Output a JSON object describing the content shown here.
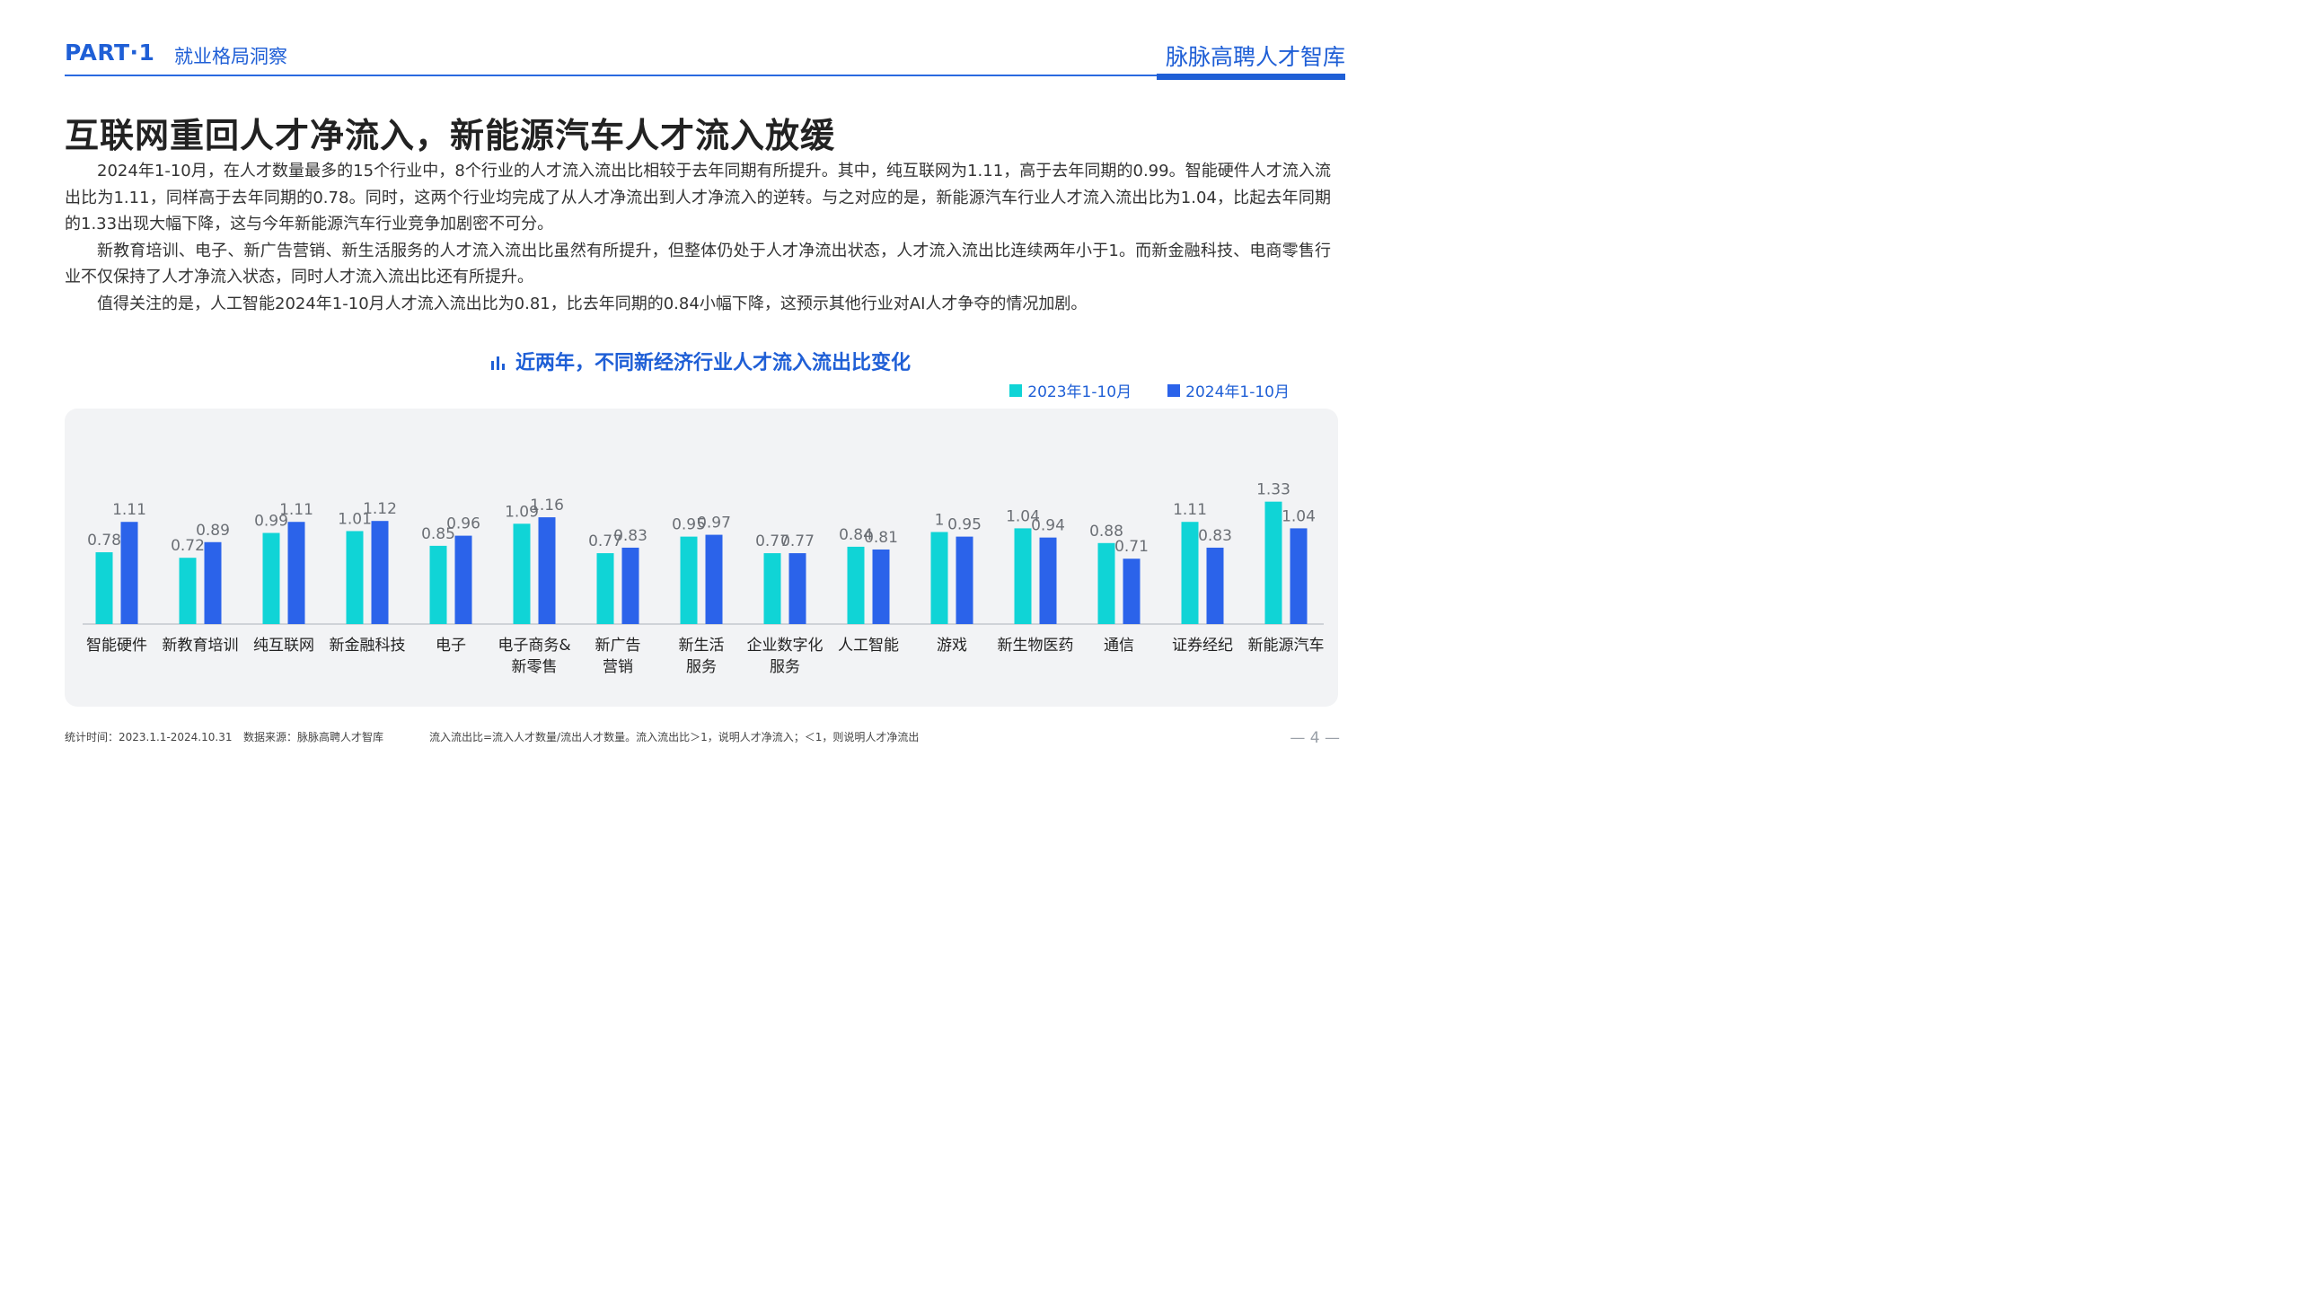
{
  "header": {
    "part": "PART·1",
    "section": "就业格局洞察",
    "brand": "脉脉高聘人才智库"
  },
  "title": "互联网重回人才净流入，新能源汽车人才流入放缓",
  "paragraphs": [
    "2024年1-10月，在人才数量最多的15个行业中，8个行业的人才流入流出比相较于去年同期有所提升。其中，纯互联网为1.11，高于去年同期的0.99。智能硬件人才流入流出比为1.11，同样高于去年同期的0.78。同时，这两个行业均完成了从人才净流出到人才净流入的逆转。与之对应的是，新能源汽车行业人才流入流出比为1.04，比起去年同期的1.33出现大幅下降，这与今年新能源汽车行业竞争加剧密不可分。",
    "新教育培训、电子、新广告营销、新生活服务的人才流入流出比虽然有所提升，但整体仍处于人才净流出状态，人才流入流出比连续两年小于1。而新金融科技、电商零售行业不仅保持了人才净流入状态，同时人才流入流出比还有所提升。",
    "值得关注的是，人工智能2024年1-10月人才流入流出比为0.81，比去年同期的0.84小幅下降，这预示其他行业对AI人才争夺的情况加剧。"
  ],
  "chart_title_icon": "bar-chart-icon",
  "colors": {
    "accent": "#1f5fd6",
    "series_2023": "#10d4d6",
    "series_2024": "#2b63ea"
  },
  "chart_data": {
    "type": "bar",
    "title": "近两年，不同新经济行业人才流入流出比变化",
    "categories": [
      [
        "智能硬件"
      ],
      [
        "新教育培训"
      ],
      [
        "纯互联网"
      ],
      [
        "新金融科技"
      ],
      [
        "电子"
      ],
      [
        "电子商务&",
        "新零售"
      ],
      [
        "新广告",
        "营销"
      ],
      [
        "新生活",
        "服务"
      ],
      [
        "企业数字化",
        "服务"
      ],
      [
        "人工智能"
      ],
      [
        "游戏"
      ],
      [
        "新生物医药"
      ],
      [
        "通信"
      ],
      [
        "证券经纪"
      ],
      [
        "新能源汽车"
      ]
    ],
    "series": [
      {
        "name": "2023年1-10月",
        "values": [
          0.78,
          0.72,
          0.99,
          1.01,
          0.85,
          1.09,
          0.77,
          0.95,
          0.77,
          0.84,
          1,
          1.04,
          0.88,
          1.11,
          1.33
        ]
      },
      {
        "name": "2024年1-10月",
        "values": [
          1.11,
          0.89,
          1.11,
          1.12,
          0.96,
          1.16,
          0.83,
          0.97,
          0.77,
          0.81,
          0.95,
          0.94,
          0.71,
          0.83,
          1.04
        ]
      }
    ],
    "legend_position": "top-right",
    "grid": false
  },
  "footer": {
    "time": "统计时间：2023.1.1-2024.10.31",
    "source": "数据来源：脉脉高聘人才智库",
    "note": "流入流出比=流入人才数量/流出人才数量。流入流出比＞1，说明人才净流入；＜1，则说明人才净流出"
  },
  "page_number": "— 4 —"
}
